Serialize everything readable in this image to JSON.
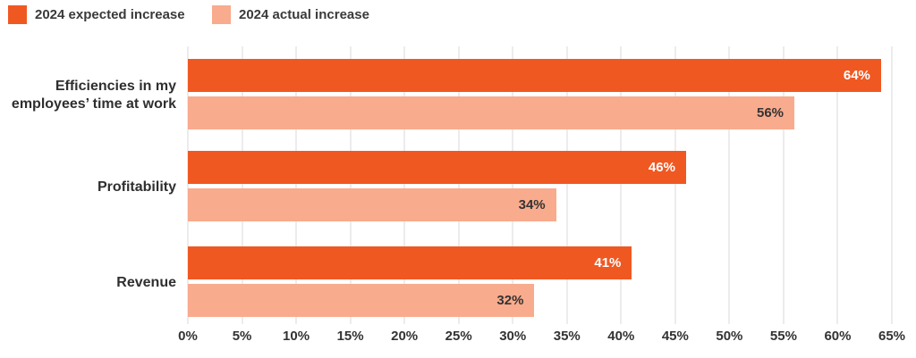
{
  "chart_data": {
    "type": "bar",
    "orientation": "horizontal",
    "title": "",
    "categories": [
      "Efficiencies in my employees’ time at work",
      "Profitability",
      "Revenue"
    ],
    "category_lines": [
      [
        "Efficiencies in my",
        "employees’ time at work"
      ],
      [
        "Profitability"
      ],
      [
        "Revenue"
      ]
    ],
    "series": [
      {
        "name": "2024 expected increase",
        "color": "#F05822",
        "label_color": "#FFFFFF",
        "values": [
          64,
          46,
          41
        ]
      },
      {
        "name": "2024 actual increase",
        "color": "#F9AB8D",
        "label_color": "#333333",
        "values": [
          56,
          34,
          32
        ]
      }
    ],
    "value_suffix": "%",
    "xlim": [
      0,
      65
    ],
    "x_tick_values": [
      0,
      5,
      10,
      15,
      20,
      25,
      30,
      35,
      40,
      45,
      50,
      55,
      60,
      65
    ],
    "x_tick_labels": [
      "0%",
      "5%",
      "10%",
      "15%",
      "20%",
      "25%",
      "30%",
      "35%",
      "40%",
      "45%",
      "50%",
      "55%",
      "60%",
      "65%"
    ],
    "grid": "vertical",
    "legend_position": "top-left",
    "background": "#FFFFFF"
  }
}
